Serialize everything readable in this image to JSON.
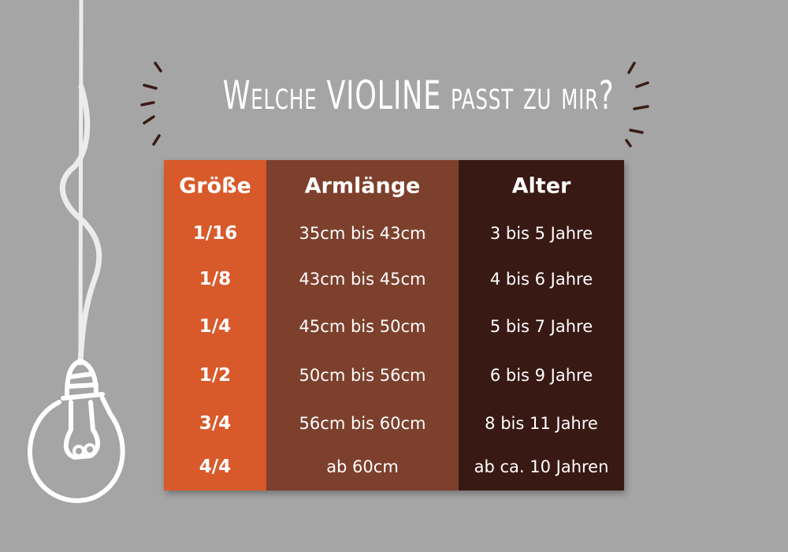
{
  "title": "Welche VIOLINE passt zu mir?",
  "table": {
    "headers": [
      "Größe",
      "Armlänge",
      "Alter"
    ],
    "rows": [
      [
        "1/16",
        "35cm bis 43cm",
        "3 bis 5 Jahre"
      ],
      [
        "1/8",
        "43cm bis 45cm",
        "4 bis 6 Jahre"
      ],
      [
        "1/4",
        "45cm bis 50cm",
        "5 bis 7 Jahre"
      ],
      [
        "1/2",
        "50cm bis 56cm",
        "6 bis 9 Jahre"
      ],
      [
        "3/4",
        "56cm bis 60cm",
        "8 bis 11 Jahre"
      ],
      [
        "4/4",
        "ab 60cm",
        "ab ca. 10 Jahren"
      ]
    ]
  },
  "colors": {
    "background": "#a5a5a5",
    "size_column": "#d85a2b",
    "arm_column": "#7d402d",
    "age_column": "#391913"
  },
  "icons": [
    "light-bulb-icon",
    "sparkle-strokes-icon"
  ]
}
